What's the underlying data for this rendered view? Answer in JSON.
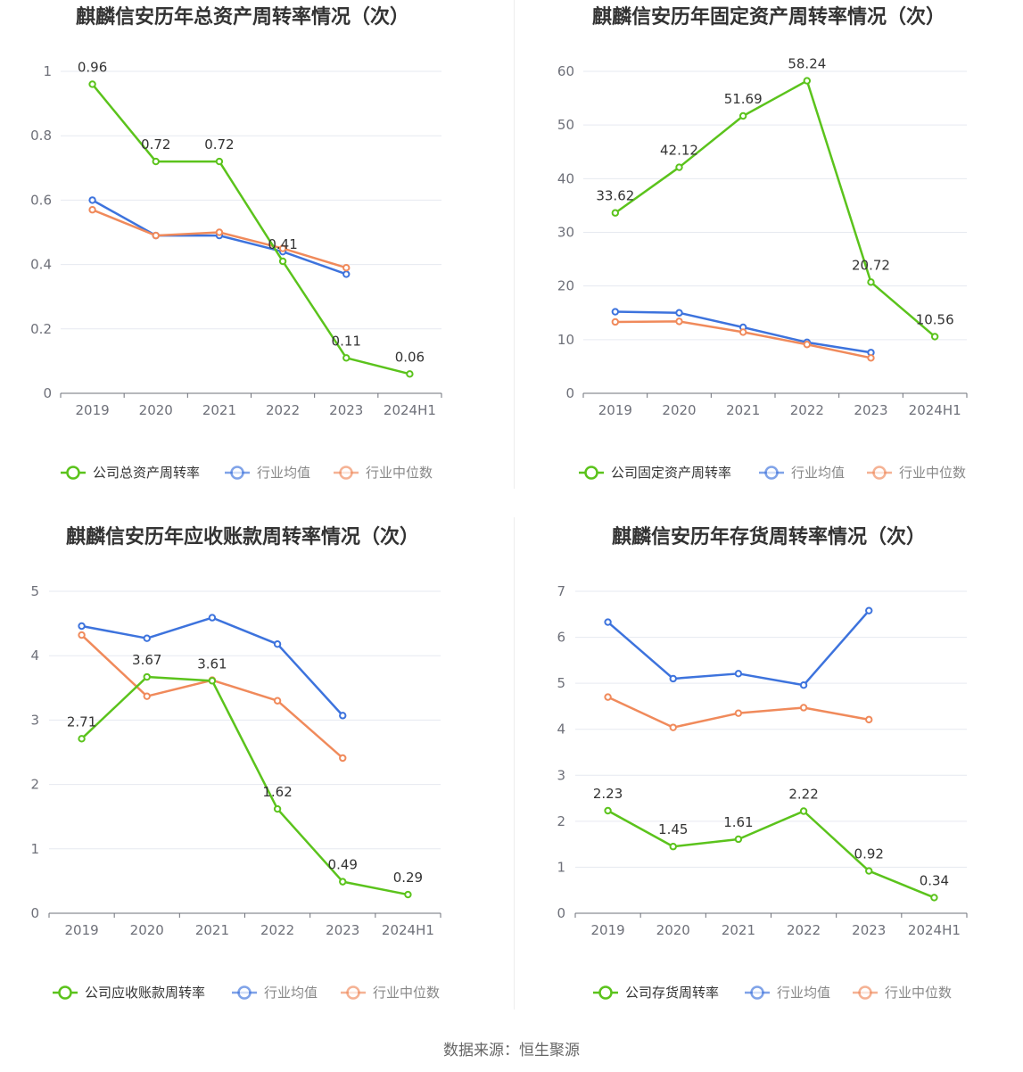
{
  "colors": {
    "company": "#5bc31c",
    "industry_avg": "#3d73dd",
    "industry_median": "#f08a5b",
    "grid": "#e6e9f0",
    "axis": "#6e7079"
  },
  "footer": {
    "source": "数据来源：恒生聚源"
  },
  "chart_data": [
    {
      "type": "line",
      "title": "麒麟信安历年总资产周转率情况（次）",
      "categories": [
        "2019",
        "2020",
        "2021",
        "2022",
        "2023",
        "2024H1"
      ],
      "ylim": [
        0,
        1
      ],
      "yticks": [
        0,
        0.2,
        0.4,
        0.6,
        0.8,
        1
      ],
      "ytick_labels": [
        "0",
        "0.2",
        "0.4",
        "0.6",
        "0.8",
        "1"
      ],
      "grid": true,
      "legend_position": "bottom",
      "series": [
        {
          "name": "公司总资产周转率",
          "color": "#5bc31c",
          "values": [
            0.96,
            0.72,
            0.72,
            0.41,
            0.11,
            0.06
          ],
          "labels": [
            "0.96",
            "0.72",
            "0.72",
            "0.41",
            "0.11",
            "0.06"
          ]
        },
        {
          "name": "行业均值",
          "color": "#3d73dd",
          "values": [
            0.6,
            0.49,
            0.49,
            0.44,
            0.37,
            null
          ]
        },
        {
          "name": "行业中位数",
          "color": "#f08a5b",
          "values": [
            0.57,
            0.49,
            0.5,
            0.45,
            0.39,
            null
          ]
        }
      ]
    },
    {
      "type": "line",
      "title": "麒麟信安历年固定资产周转率情况（次）",
      "categories": [
        "2019",
        "2020",
        "2021",
        "2022",
        "2023",
        "2024H1"
      ],
      "ylim": [
        0,
        60
      ],
      "yticks": [
        0,
        10,
        20,
        30,
        40,
        50,
        60
      ],
      "ytick_labels": [
        "0",
        "10",
        "20",
        "30",
        "40",
        "50",
        "60"
      ],
      "grid": true,
      "legend_position": "bottom",
      "series": [
        {
          "name": "公司固定资产周转率",
          "color": "#5bc31c",
          "values": [
            33.62,
            42.12,
            51.69,
            58.24,
            20.72,
            10.56
          ],
          "labels": [
            "33.62",
            "42.12",
            "51.69",
            "58.24",
            "20.72",
            "10.56"
          ]
        },
        {
          "name": "行业均值",
          "color": "#3d73dd",
          "values": [
            15.2,
            15.0,
            12.3,
            9.5,
            7.6,
            null
          ]
        },
        {
          "name": "行业中位数",
          "color": "#f08a5b",
          "values": [
            13.3,
            13.4,
            11.4,
            9.1,
            6.6,
            null
          ]
        }
      ]
    },
    {
      "type": "line",
      "title": "麒麟信安历年应收账款周转率情况（次）",
      "categories": [
        "2019",
        "2020",
        "2021",
        "2022",
        "2023",
        "2024H1"
      ],
      "ylim": [
        0,
        5
      ],
      "yticks": [
        0,
        1,
        2,
        3,
        4,
        5
      ],
      "ytick_labels": [
        "0",
        "1",
        "2",
        "3",
        "4",
        "5"
      ],
      "grid": true,
      "legend_position": "bottom",
      "series": [
        {
          "name": "公司应收账款周转率",
          "color": "#5bc31c",
          "values": [
            2.71,
            3.67,
            3.61,
            1.62,
            0.49,
            0.29
          ],
          "labels": [
            "2.71",
            "3.67",
            "3.61",
            "1.62",
            "0.49",
            "0.29"
          ]
        },
        {
          "name": "行业均值",
          "color": "#3d73dd",
          "values": [
            4.46,
            4.27,
            4.59,
            4.18,
            3.07,
            null
          ]
        },
        {
          "name": "行业中位数",
          "color": "#f08a5b",
          "values": [
            4.32,
            3.37,
            3.62,
            3.3,
            2.41,
            null
          ]
        }
      ]
    },
    {
      "type": "line",
      "title": "麒麟信安历年存货周转率情况（次）",
      "categories": [
        "2019",
        "2020",
        "2021",
        "2022",
        "2023",
        "2024H1"
      ],
      "ylim": [
        0,
        7
      ],
      "yticks": [
        0,
        1,
        2,
        3,
        4,
        5,
        6,
        7
      ],
      "ytick_labels": [
        "0",
        "1",
        "2",
        "3",
        "4",
        "5",
        "6",
        "7"
      ],
      "grid": true,
      "legend_position": "bottom",
      "series": [
        {
          "name": "公司存货周转率",
          "color": "#5bc31c",
          "values": [
            2.23,
            1.45,
            1.61,
            2.22,
            0.92,
            0.34
          ],
          "labels": [
            "2.23",
            "1.45",
            "1.61",
            "2.22",
            "0.92",
            "0.34"
          ]
        },
        {
          "name": "行业均值",
          "color": "#3d73dd",
          "values": [
            6.33,
            5.1,
            5.21,
            4.96,
            6.58,
            null
          ]
        },
        {
          "name": "行业中位数",
          "color": "#f08a5b",
          "values": [
            4.7,
            4.04,
            4.35,
            4.47,
            4.21,
            null
          ]
        }
      ]
    }
  ]
}
